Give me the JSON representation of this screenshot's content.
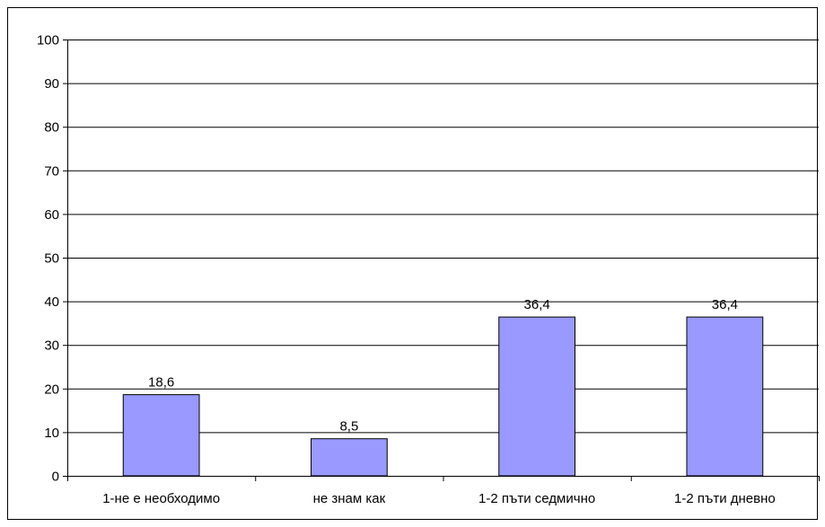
{
  "chart_data": {
    "type": "bar",
    "categories": [
      "1-не е необходимо",
      "не знам как",
      "1-2 пъти седмично",
      "1-2 пъти дневно"
    ],
    "values": [
      18.6,
      8.5,
      36.4,
      36.4
    ],
    "value_labels": [
      "18,6",
      "8,5",
      "36,4",
      "36,4"
    ],
    "title": "",
    "xlabel": "",
    "ylabel": "",
    "ylim": [
      0,
      100
    ],
    "yticks": [
      0,
      10,
      20,
      30,
      40,
      50,
      60,
      70,
      80,
      90,
      100
    ],
    "grid": true,
    "legend": "none",
    "bar_color": "#9999FF",
    "bar_stroke": "#000000",
    "grid_color": "#000000"
  }
}
